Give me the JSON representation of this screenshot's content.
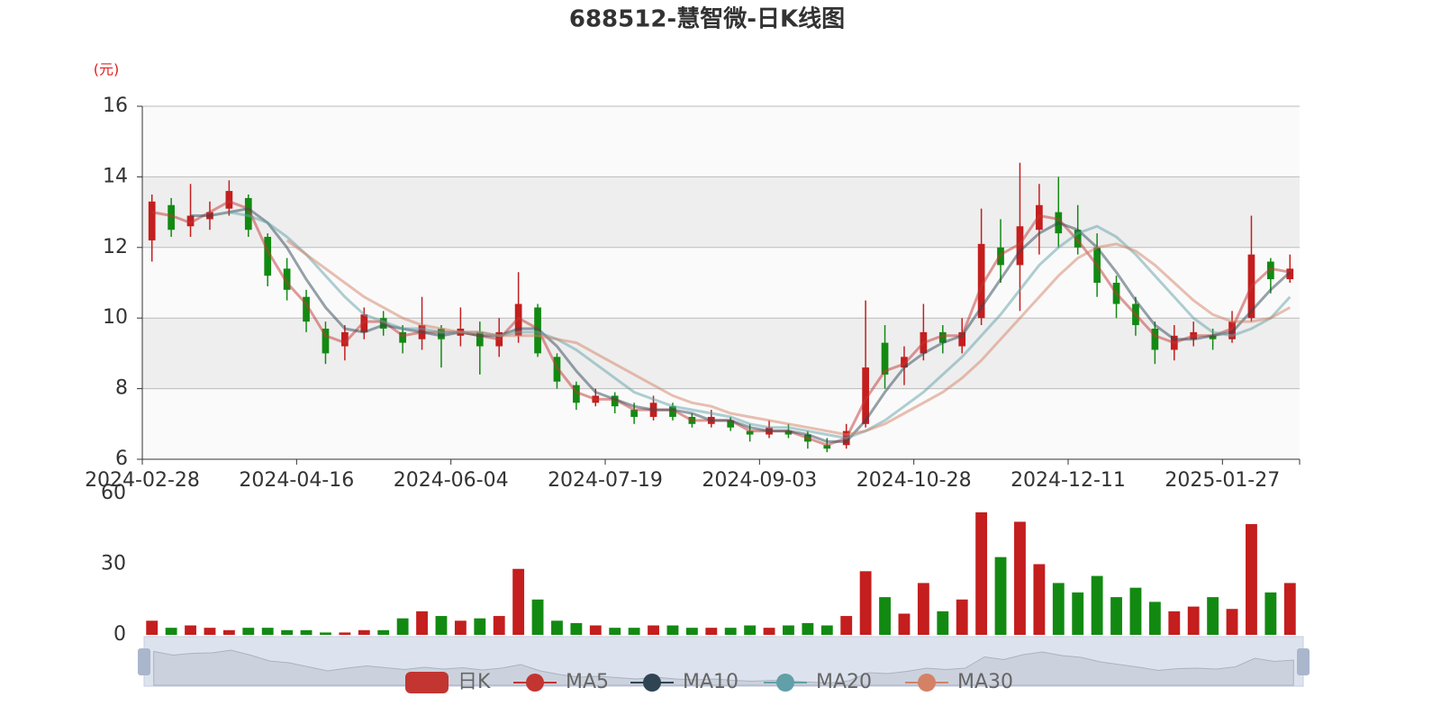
{
  "chart_data": {
    "type": "candlestick",
    "title": "688512-慧智微-日K线图",
    "y_unit": "(元)",
    "categories": [
      "2024-02-28",
      null,
      null,
      null,
      null,
      null,
      null,
      null,
      "2024-04-16",
      null,
      null,
      null,
      null,
      null,
      null,
      null,
      "2024-06-04",
      null,
      null,
      null,
      null,
      null,
      null,
      null,
      "2024-07-19",
      null,
      null,
      null,
      null,
      null,
      null,
      null,
      "2024-09-03",
      null,
      null,
      null,
      null,
      null,
      null,
      null,
      "2024-10-28",
      null,
      null,
      null,
      null,
      null,
      null,
      null,
      "2024-12-11",
      null,
      null,
      null,
      null,
      null,
      null,
      null,
      "2025-01-27",
      null,
      null,
      null
    ],
    "ylim": [
      6,
      16
    ],
    "yticks": [
      6,
      8,
      10,
      12,
      14,
      16
    ],
    "grid": true,
    "up_color": "#c41e1e",
    "down_color": "#128a12",
    "series": [
      {
        "name": "日K",
        "type": "candlestick",
        "color": "#c23531",
        "values": [
          [
            12.2,
            13.3,
            11.6,
            13.5
          ],
          [
            13.2,
            12.5,
            12.3,
            13.4
          ],
          [
            12.6,
            12.9,
            12.3,
            13.8
          ],
          [
            12.8,
            13.0,
            12.5,
            13.3
          ],
          [
            13.1,
            13.6,
            12.9,
            13.9
          ],
          [
            13.4,
            12.5,
            12.3,
            13.5
          ],
          [
            12.3,
            11.2,
            10.9,
            12.4
          ],
          [
            11.4,
            10.8,
            10.5,
            11.7
          ],
          [
            10.6,
            9.9,
            9.6,
            10.8
          ],
          [
            9.7,
            9.0,
            8.7,
            9.9
          ],
          [
            9.2,
            9.6,
            8.8,
            9.8
          ],
          [
            9.6,
            10.1,
            9.4,
            10.3
          ],
          [
            10.0,
            9.7,
            9.5,
            10.2
          ],
          [
            9.6,
            9.3,
            9.0,
            9.8
          ],
          [
            9.4,
            9.8,
            9.1,
            10.6
          ],
          [
            9.7,
            9.4,
            8.6,
            9.8
          ],
          [
            9.5,
            9.7,
            9.2,
            10.3
          ],
          [
            9.6,
            9.2,
            8.4,
            9.9
          ],
          [
            9.2,
            9.6,
            8.9,
            10.0
          ],
          [
            9.5,
            10.4,
            9.3,
            11.3
          ],
          [
            10.3,
            9.0,
            8.9,
            10.4
          ],
          [
            8.9,
            8.2,
            8.0,
            9.0
          ],
          [
            8.1,
            7.6,
            7.4,
            8.2
          ],
          [
            7.6,
            7.8,
            7.5,
            8.0
          ],
          [
            7.8,
            7.5,
            7.3,
            7.9
          ],
          [
            7.4,
            7.2,
            7.0,
            7.6
          ],
          [
            7.2,
            7.6,
            7.1,
            7.8
          ],
          [
            7.5,
            7.2,
            7.1,
            7.6
          ],
          [
            7.2,
            7.0,
            6.9,
            7.3
          ],
          [
            7.0,
            7.2,
            6.9,
            7.4
          ],
          [
            7.1,
            6.9,
            6.8,
            7.2
          ],
          [
            6.8,
            6.7,
            6.5,
            7.0
          ],
          [
            6.7,
            6.9,
            6.6,
            7.1
          ],
          [
            6.8,
            6.7,
            6.6,
            7.0
          ],
          [
            6.7,
            6.5,
            6.3,
            6.8
          ],
          [
            6.4,
            6.3,
            6.2,
            6.6
          ],
          [
            6.4,
            6.8,
            6.3,
            7.0
          ],
          [
            7.0,
            8.6,
            6.9,
            10.5
          ],
          [
            9.3,
            8.4,
            8.0,
            9.8
          ],
          [
            8.6,
            8.9,
            8.1,
            9.2
          ],
          [
            9.0,
            9.6,
            8.8,
            10.4
          ],
          [
            9.6,
            9.3,
            9.0,
            9.8
          ],
          [
            9.2,
            9.6,
            9.0,
            10.0
          ],
          [
            10.0,
            12.1,
            9.8,
            13.1
          ],
          [
            12.0,
            11.5,
            11.0,
            12.8
          ],
          [
            11.5,
            12.6,
            10.2,
            14.4
          ],
          [
            12.5,
            13.2,
            11.8,
            13.8
          ],
          [
            13.0,
            12.4,
            12.0,
            14.0
          ],
          [
            12.5,
            12.0,
            11.8,
            13.2
          ],
          [
            12.0,
            11.0,
            10.6,
            12.4
          ],
          [
            11.0,
            10.4,
            10.0,
            11.2
          ],
          [
            10.4,
            9.8,
            9.5,
            10.6
          ],
          [
            9.7,
            9.1,
            8.7,
            9.9
          ],
          [
            9.1,
            9.5,
            8.8,
            9.8
          ],
          [
            9.4,
            9.6,
            9.2,
            9.9
          ],
          [
            9.5,
            9.4,
            9.1,
            9.7
          ],
          [
            9.4,
            9.9,
            9.3,
            10.2
          ],
          [
            10.0,
            11.8,
            9.9,
            12.9
          ],
          [
            11.6,
            11.1,
            10.7,
            11.7
          ],
          [
            11.1,
            11.4,
            11.0,
            11.8
          ]
        ]
      },
      {
        "name": "MA5",
        "type": "line",
        "color": "#c23531",
        "values": [
          13.0,
          12.9,
          12.7,
          13.0,
          13.3,
          13.1,
          11.9,
          11.0,
          10.4,
          9.5,
          9.3,
          9.9,
          9.9,
          9.5,
          9.6,
          9.6,
          9.6,
          9.5,
          9.4,
          10.0,
          9.7,
          8.6,
          7.9,
          7.7,
          7.7,
          7.4,
          7.4,
          7.4,
          7.1,
          7.1,
          7.1,
          6.8,
          6.8,
          6.8,
          6.6,
          6.4,
          6.6,
          7.7,
          8.5,
          8.7,
          9.3,
          9.5,
          9.5,
          10.9,
          11.8,
          12.1,
          12.9,
          12.8,
          12.2,
          11.5,
          10.7,
          10.1,
          9.5,
          9.3,
          9.5,
          9.5,
          9.7,
          10.9,
          11.4,
          11.3
        ]
      },
      {
        "name": "MA10",
        "type": "line",
        "color": "#2f4554",
        "values": [
          null,
          null,
          12.9,
          12.9,
          13.0,
          13.1,
          12.7,
          12.0,
          11.1,
          10.3,
          9.7,
          9.6,
          9.8,
          9.7,
          9.6,
          9.5,
          9.6,
          9.5,
          9.5,
          9.7,
          9.7,
          9.2,
          8.5,
          7.9,
          7.7,
          7.5,
          7.4,
          7.4,
          7.3,
          7.1,
          7.1,
          6.9,
          6.8,
          6.8,
          6.7,
          6.5,
          6.5,
          7.1,
          7.9,
          8.6,
          9.0,
          9.3,
          9.5,
          10.3,
          11.1,
          11.9,
          12.4,
          12.7,
          12.5,
          12.0,
          11.3,
          10.5,
          9.8,
          9.4,
          9.4,
          9.5,
          9.6,
          10.2,
          10.8,
          11.3
        ]
      },
      {
        "name": "MA20",
        "type": "line",
        "color": "#61a0a8",
        "values": [
          null,
          null,
          null,
          null,
          13.0,
          12.9,
          12.7,
          12.3,
          11.8,
          11.2,
          10.6,
          10.1,
          9.9,
          9.7,
          9.7,
          9.6,
          9.6,
          9.6,
          9.5,
          9.6,
          9.6,
          9.4,
          9.1,
          8.7,
          8.3,
          7.9,
          7.7,
          7.5,
          7.4,
          7.3,
          7.2,
          7.0,
          6.9,
          6.9,
          6.8,
          6.7,
          6.6,
          6.8,
          7.1,
          7.5,
          7.9,
          8.4,
          8.9,
          9.5,
          10.1,
          10.8,
          11.5,
          12.0,
          12.4,
          12.6,
          12.3,
          11.8,
          11.2,
          10.6,
          10.0,
          9.6,
          9.5,
          9.7,
          10.0,
          10.6
        ]
      },
      {
        "name": "MA30",
        "type": "line",
        "color": "#d48265",
        "values": [
          null,
          null,
          null,
          null,
          null,
          null,
          null,
          12.2,
          11.8,
          11.4,
          11.0,
          10.6,
          10.3,
          10.0,
          9.8,
          9.7,
          9.6,
          9.6,
          9.5,
          9.5,
          9.5,
          9.4,
          9.3,
          9.0,
          8.7,
          8.4,
          8.1,
          7.8,
          7.6,
          7.5,
          7.3,
          7.2,
          7.1,
          7.0,
          6.9,
          6.8,
          6.7,
          6.8,
          7.0,
          7.3,
          7.6,
          7.9,
          8.3,
          8.8,
          9.4,
          10.0,
          10.6,
          11.2,
          11.7,
          12.0,
          12.1,
          11.9,
          11.5,
          11.0,
          10.5,
          10.1,
          9.9,
          9.9,
          10.0,
          10.3
        ]
      }
    ],
    "volume": {
      "ylim": [
        0,
        60
      ],
      "yticks": [
        0,
        30,
        60
      ],
      "values": [
        6,
        3,
        4,
        3,
        2,
        3,
        3,
        2,
        2,
        1,
        1,
        2,
        2,
        7,
        10,
        8,
        6,
        7,
        8,
        28,
        15,
        6,
        5,
        4,
        3,
        3,
        4,
        4,
        3,
        3,
        3,
        4,
        3,
        4,
        5,
        4,
        8,
        27,
        16,
        9,
        22,
        10,
        15,
        52,
        33,
        48,
        30,
        22,
        18,
        25,
        16,
        20,
        14,
        10,
        12,
        16,
        11,
        47,
        18,
        22
      ]
    }
  }
}
